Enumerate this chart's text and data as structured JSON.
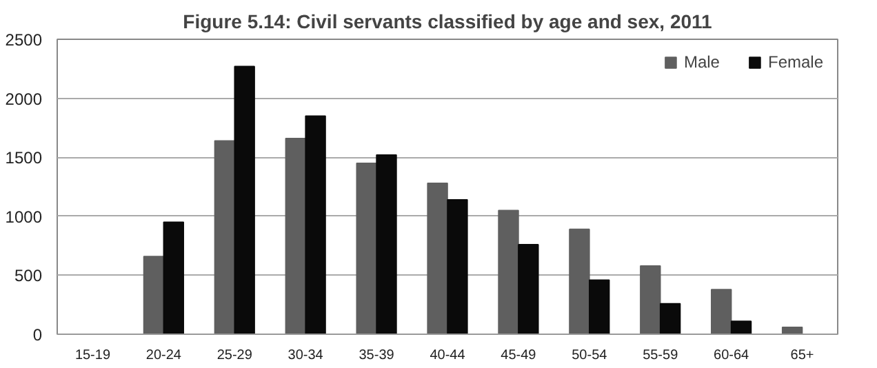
{
  "chart_data": {
    "type": "bar",
    "title": "Figure 5.14: Civil servants classified by age and sex, 2011",
    "categories": [
      "15-19",
      "20-24",
      "25-29",
      "30-34",
      "35-39",
      "40-44",
      "45-49",
      "50-54",
      "55-59",
      "60-64",
      "65+"
    ],
    "series": [
      {
        "name": "Male",
        "color": "#5f5f5f",
        "values": [
          0,
          660,
          1640,
          1660,
          1450,
          1280,
          1050,
          890,
          580,
          380,
          60
        ]
      },
      {
        "name": "Female",
        "color": "#0a0a0a",
        "values": [
          0,
          950,
          2270,
          1850,
          1520,
          1140,
          760,
          460,
          260,
          110,
          0
        ]
      }
    ],
    "ylim": [
      0,
      2500
    ],
    "yticks": [
      0,
      500,
      1000,
      1500,
      2000,
      2500
    ],
    "grid": "y",
    "legend": "top right"
  }
}
